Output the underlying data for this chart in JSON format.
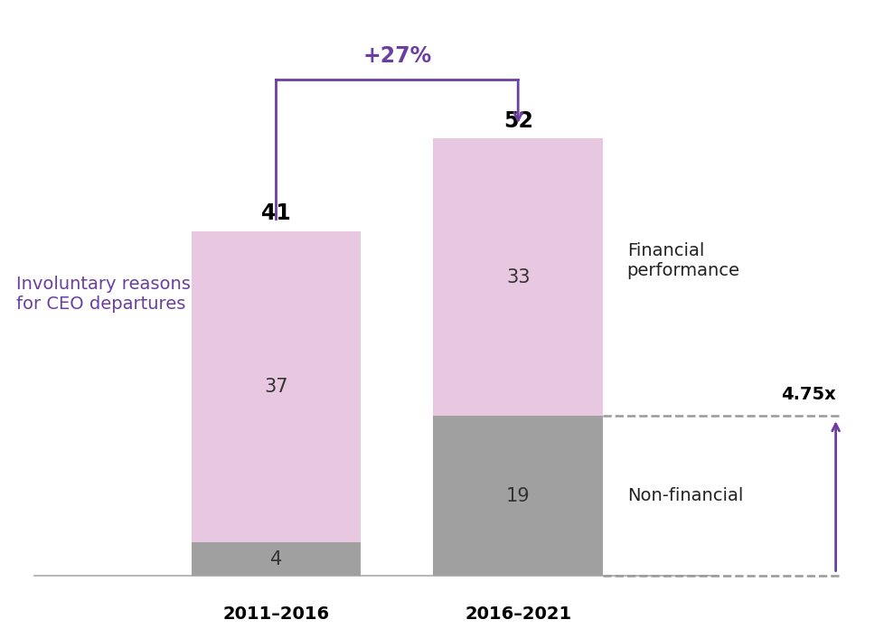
{
  "categories": [
    "2011–2016",
    "2016–2021"
  ],
  "financial_values": [
    37,
    33
  ],
  "nonfinancial_values": [
    4,
    19
  ],
  "totals": [
    41,
    52
  ],
  "bar_width": 0.28,
  "bar_positions": [
    0.35,
    0.75
  ],
  "financial_color": "#e8c8e0",
  "nonfinancial_color": "#a0a0a0",
  "purple_color": "#6b3fa0",
  "title_text": "Involuntary reasons\nfor CEO departures",
  "annotation_pct": "+27%",
  "annotation_mult": "4.75x",
  "label_financial": "Financial\nperformance",
  "label_nonfinancial": "Non-financial",
  "background_color": "#ffffff",
  "xlim": [
    -0.1,
    1.35
  ],
  "ylim": [
    -5,
    68
  ]
}
